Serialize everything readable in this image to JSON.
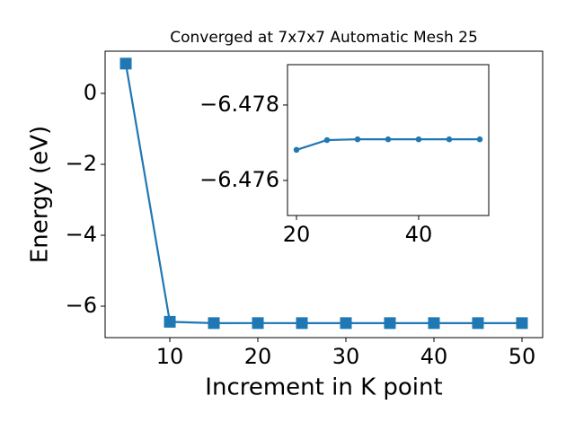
{
  "chart_data": [
    {
      "type": "line",
      "title": "Converged at 7x7x7 Automatic Mesh 25",
      "x_label": "Increment in K point",
      "y_label": "Energy (eV)",
      "x": [
        5,
        10,
        15,
        20,
        25,
        30,
        35,
        40,
        45,
        50
      ],
      "series": [
        {
          "color": "#1f77b4",
          "marker": "square",
          "values": [
            0.84,
            -6.44,
            -6.4771,
            -6.4768,
            -6.4771,
            -6.4771,
            -6.4771,
            -6.4771,
            -6.4771,
            -6.4771
          ]
        }
      ],
      "xlim": [
        2.65,
        52.35
      ],
      "xticks": [
        10,
        20,
        30,
        40,
        50
      ],
      "ylim": [
        -6.886,
        1.19
      ],
      "yticks": [
        {
          "value": -6,
          "label": "−6"
        },
        {
          "value": -4,
          "label": "−4"
        },
        {
          "value": -2,
          "label": "−2"
        },
        0
      ]
    },
    {
      "type": "line",
      "x": [
        20,
        25,
        30,
        35,
        40,
        45,
        50
      ],
      "series": [
        {
          "color": "#1f77b4",
          "marker": "circle",
          "values": [
            -6.47681,
            -6.47707,
            -6.47709,
            -6.47709,
            -6.47709,
            -6.47709,
            -6.47709
          ]
        }
      ],
      "xlim": [
        18.53,
        51.47
      ],
      "xticks": [
        20,
        40
      ],
      "ylim": [
        -6.47507,
        -6.47907
      ],
      "yticks": [
        {
          "value": -6.478,
          "label": "−6.478"
        },
        {
          "value": -6.476,
          "label": "−6.476"
        }
      ]
    }
  ]
}
